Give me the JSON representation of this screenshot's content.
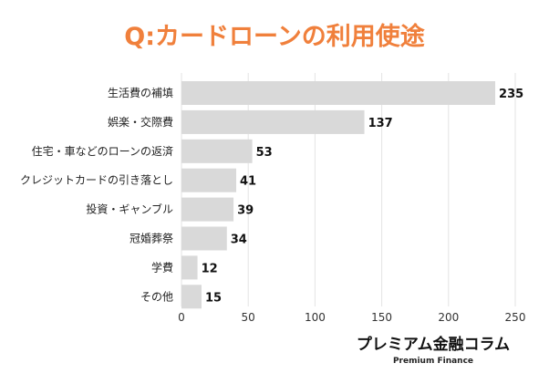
{
  "chart_data": {
    "type": "bar",
    "orientation": "horizontal",
    "title": "Q:カードローンの利用使途",
    "categories": [
      "生活費の補填",
      "娯楽・交際費",
      "住宅・車などのローンの返済",
      "クレジットカードの引き落とし",
      "投資・ギャンブル",
      "冠婚葬祭",
      "学費",
      "その他"
    ],
    "values": [
      235,
      137,
      53,
      41,
      39,
      34,
      12,
      15
    ],
    "xlim": [
      0,
      250
    ],
    "xticks": [
      0,
      50,
      100,
      150,
      200,
      250
    ],
    "xlabel": "",
    "ylabel": "",
    "grid": true,
    "colors": {
      "bar": "#d9d9d9",
      "title": "#f0803c",
      "grid": "#e3e3e3"
    }
  },
  "brand": {
    "name": "プレミアム金融コラム",
    "sub": "Premium Finance"
  }
}
